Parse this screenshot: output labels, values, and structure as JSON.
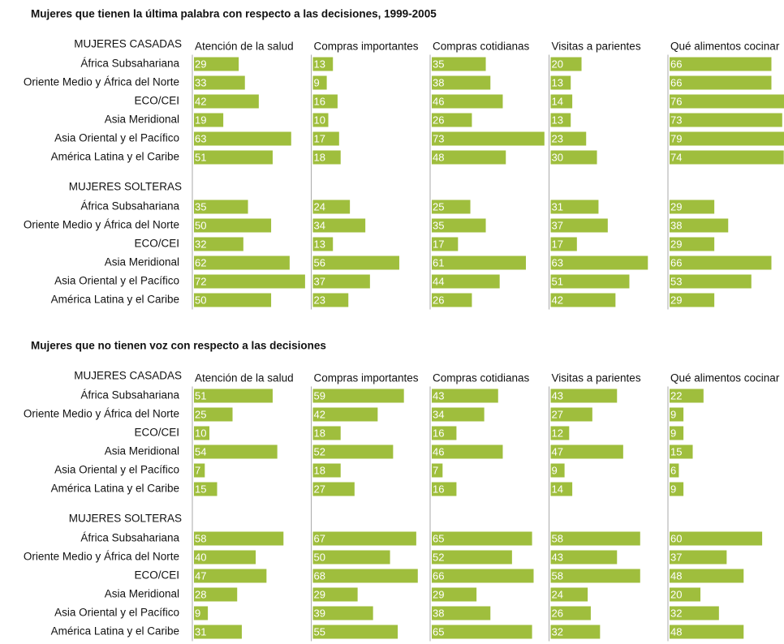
{
  "chart_data": [
    {
      "type": "bar",
      "title": "Mujeres que tienen la última palabra con respecto a las decisiones, 1999-2005",
      "xlim": [
        0,
        76
      ],
      "groups": [
        {
          "name": "MUJERES CASADAS",
          "categories": [
            "África Subsahariana",
            "Oriente Medio y África del Norte",
            "ECO/CEI",
            "Asia Meridional",
            "Asia Oriental y el Pacífico",
            "América Latina y el Caribe"
          ]
        },
        {
          "name": "MUJERES SOLTERAS",
          "categories": [
            "África Subsahariana",
            "Oriente Medio y África del Norte",
            "ECO/CEI",
            "Asia Meridional",
            "Asia Oriental y el Pacífico",
            "América Latina y el Caribe"
          ]
        }
      ],
      "series": [
        {
          "name": "Atención de la salud",
          "color": "#9fbe3d",
          "values": [
            [
              29,
              33,
              42,
              19,
              63,
              51
            ],
            [
              35,
              50,
              32,
              62,
              72,
              50
            ]
          ]
        },
        {
          "name": "Compras importantes",
          "color": "#9fbe3d",
          "values": [
            [
              13,
              9,
              16,
              10,
              17,
              18
            ],
            [
              24,
              34,
              13,
              56,
              37,
              23
            ]
          ]
        },
        {
          "name": "Compras cotidianas",
          "color": "#9fbe3d",
          "values": [
            [
              35,
              38,
              46,
              26,
              73,
              48
            ],
            [
              25,
              35,
              17,
              61,
              44,
              26
            ]
          ]
        },
        {
          "name": "Visitas a parientes",
          "color": "#9fbe3d",
          "values": [
            [
              20,
              13,
              14,
              13,
              23,
              30
            ],
            [
              31,
              37,
              17,
              63,
              51,
              42
            ]
          ]
        },
        {
          "name": "Qué alimentos cocinar",
          "color": "#9fbe3d",
          "values": [
            [
              66,
              66,
              76,
              73,
              79,
              74
            ],
            [
              29,
              38,
              29,
              66,
              53,
              29
            ]
          ]
        }
      ]
    },
    {
      "type": "bar",
      "title": "Mujeres que no tienen voz con respecto a las decisiones",
      "xlim": [
        0,
        76
      ],
      "groups": [
        {
          "name": "MUJERES CASADAS",
          "categories": [
            "África Subsahariana",
            "Oriente Medio y África del Norte",
            "ECO/CEI",
            "Asia Meridional",
            "Asia Oriental y el Pacífico",
            "América Latina y el Caribe"
          ]
        },
        {
          "name": "MUJERES SOLTERAS",
          "categories": [
            "África Subsahariana",
            "Oriente Medio y África del Norte",
            "ECO/CEI",
            "Asia Meridional",
            "Asia Oriental y el Pacífico",
            "América Latina y el Caribe"
          ]
        }
      ],
      "series": [
        {
          "name": "Atención de la salud",
          "color": "#9fbe3d",
          "values": [
            [
              51,
              25,
              10,
              54,
              7,
              15
            ],
            [
              58,
              40,
              47,
              28,
              9,
              31
            ]
          ]
        },
        {
          "name": "Compras importantes",
          "color": "#9fbe3d",
          "values": [
            [
              59,
              42,
              18,
              52,
              18,
              27
            ],
            [
              67,
              50,
              68,
              29,
              39,
              55
            ]
          ]
        },
        {
          "name": "Compras cotidianas",
          "color": "#9fbe3d",
          "values": [
            [
              43,
              34,
              16,
              46,
              7,
              16
            ],
            [
              65,
              52,
              66,
              29,
              38,
              65
            ]
          ]
        },
        {
          "name": "Visitas a parientes",
          "color": "#9fbe3d",
          "values": [
            [
              43,
              27,
              12,
              47,
              9,
              14
            ],
            [
              58,
              43,
              58,
              24,
              26,
              32
            ]
          ]
        },
        {
          "name": "Qué alimentos cocinar",
          "color": "#9fbe3d",
          "values": [
            [
              22,
              9,
              9,
              15,
              6,
              9
            ],
            [
              60,
              37,
              48,
              20,
              32,
              48
            ]
          ]
        }
      ]
    }
  ]
}
